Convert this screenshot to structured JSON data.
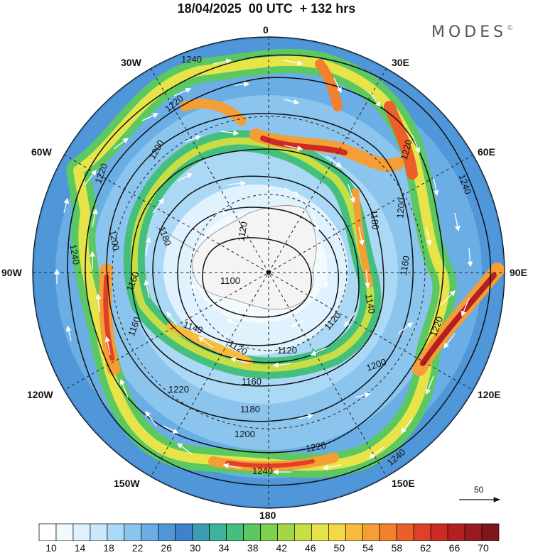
{
  "title": "18/04/2025  00 UTC  + 132 hrs",
  "brand": "MODES",
  "brand_mark": "©",
  "longitude_labels": {
    "n": "0",
    "ne1": "30E",
    "ne2": "60E",
    "e": "90E",
    "se1": "120E",
    "se2": "150E",
    "s": "180",
    "sw1": "150W",
    "sw2": "120W",
    "w": "90W",
    "nw2": "60W",
    "nw1": "30W"
  },
  "vector_scale": {
    "label": "50"
  },
  "contours": {
    "levels": [
      "1100",
      "1120",
      "1140",
      "1160",
      "1180",
      "1200",
      "1220",
      "1240"
    ]
  },
  "colorbar": {
    "ticks": [
      "10",
      "14",
      "18",
      "22",
      "26",
      "30",
      "34",
      "38",
      "42",
      "46",
      "50",
      "54",
      "58",
      "62",
      "66",
      "70"
    ],
    "colors": [
      "#ffffff",
      "#f3fafe",
      "#e0f2fd",
      "#c8e8fb",
      "#aad8f5",
      "#8bc5ee",
      "#6aaee5",
      "#4f97d8",
      "#3e82c9",
      "#3d9bb3",
      "#3eb39b",
      "#45bf7c",
      "#5bc861",
      "#7ed04f",
      "#a3d747",
      "#c7df45",
      "#e7e44a",
      "#f6d746",
      "#f7bc3c",
      "#f59e35",
      "#f2802f",
      "#ec5f2b",
      "#e04028",
      "#cc2b25",
      "#b31f22",
      "#9a1a20",
      "#7f161d"
    ]
  },
  "colors": {
    "field_low": "#e8f3fb",
    "field_mid": "#4f97d8",
    "jet_green": "#5bc861",
    "jet_yellow": "#e7e44a",
    "jet_orange": "#f59e35",
    "jet_red": "#cc2b25"
  }
}
